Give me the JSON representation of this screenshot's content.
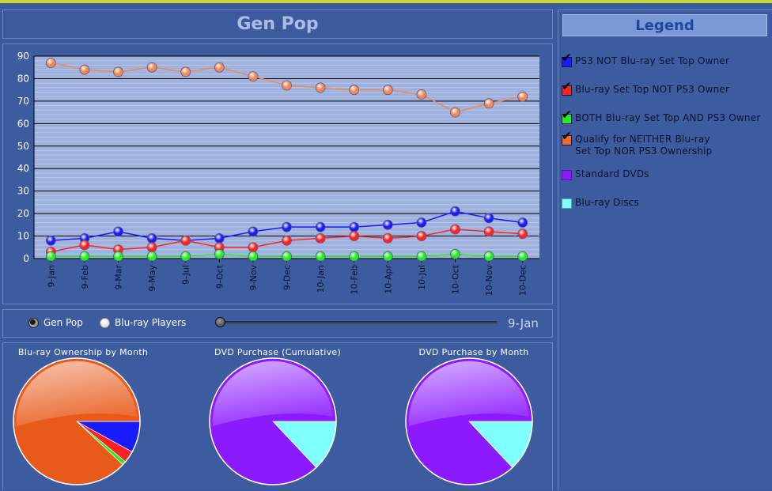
{
  "title": "Gen Pop",
  "legend": {
    "heading": "Legend",
    "items": [
      {
        "label": "PS3 NOT Blu-ray Set Top Owner",
        "color": "#1a1aff",
        "checked": true
      },
      {
        "label": "Blu-ray Set Top NOT PS3 Owner",
        "color": "#ff2222",
        "checked": true
      },
      {
        "label": "BOTH Blu-ray Set Top AND PS3 Owner",
        "color": "#22ee22",
        "checked": true
      },
      {
        "label": "Qualify for NEITHER Blu-ray\nSet Top NOR PS3 Ownership",
        "color": "#f06a2a",
        "checked": true
      },
      {
        "label": "Standard DVDs",
        "color": "#8c1aff",
        "checked": false
      },
      {
        "label": "Blu-ray Discs",
        "color": "#80ffff",
        "checked": false
      }
    ]
  },
  "controls": {
    "radio_gen_pop": "Gen Pop",
    "radio_blu_ray": "Blu-ray Players",
    "selected": "Gen Pop",
    "slider_value": "9-Jan",
    "slider_position": 0
  },
  "chart_data": [
    {
      "type": "line",
      "x": [
        "9-Jan",
        "9-Feb",
        "9-Mar",
        "9-May",
        "9-Jul",
        "9-Oct",
        "9-Nov",
        "9-Dec",
        "10-Jan",
        "10-Feb",
        "10-Apr",
        "10-Jul",
        "10-Oct",
        "10-Nov",
        "10-Dec"
      ],
      "ylim": [
        0,
        90
      ],
      "yticks": [
        0,
        10,
        20,
        30,
        40,
        50,
        60,
        70,
        80,
        90
      ],
      "grid": true,
      "series": [
        {
          "name": "Qualify for NEITHER Blu-ray Set Top NOR PS3 Ownership",
          "color": "#f08858",
          "values": [
            87,
            84,
            83,
            85,
            83,
            85,
            81,
            77,
            76,
            75,
            75,
            73,
            65,
            69,
            72
          ]
        },
        {
          "name": "PS3 NOT Blu-ray Set Top Owner",
          "color": "#1a1aff",
          "values": [
            8,
            9,
            12,
            9,
            8,
            9,
            12,
            14,
            14,
            14,
            15,
            16,
            21,
            18,
            16
          ]
        },
        {
          "name": "Blu-ray Set Top NOT PS3 Owner",
          "color": "#ff2222",
          "values": [
            3,
            6,
            4,
            5,
            8,
            5,
            5,
            8,
            9,
            10,
            9,
            10,
            13,
            12,
            11
          ]
        },
        {
          "name": "BOTH Blu-ray Set Top AND PS3 Owner",
          "color": "#22ee22",
          "values": [
            1,
            1,
            1,
            1,
            1,
            2,
            1,
            1,
            1,
            1,
            1,
            1,
            2,
            1,
            1
          ]
        }
      ]
    },
    {
      "type": "pie",
      "title": "Blu-ray Ownership by Month",
      "slices": [
        {
          "name": "PS3 NOT Blu-ray Set Top Owner",
          "value": 8,
          "color": "#1a1aff"
        },
        {
          "name": "Blu-ray Set Top NOT PS3 Owner",
          "value": 3,
          "color": "#ff2222"
        },
        {
          "name": "BOTH Blu-ray Set Top AND PS3 Owner",
          "value": 1,
          "color": "#22ee22"
        },
        {
          "name": "Qualify for NEITHER Blu-ray Set Top NOR PS3 Ownership",
          "value": 88,
          "color": "#e85a1a"
        }
      ]
    },
    {
      "type": "pie",
      "title": "DVD Purchase (Cumulative)",
      "slices": [
        {
          "name": "Blu-ray Discs",
          "value": 13,
          "color": "#80ffff"
        },
        {
          "name": "Standard DVDs",
          "value": 87,
          "color": "#8c1aff"
        }
      ]
    },
    {
      "type": "pie",
      "title": "DVD Purchase by Month",
      "slices": [
        {
          "name": "Blu-ray Discs",
          "value": 13,
          "color": "#80ffff"
        },
        {
          "name": "Standard DVDs",
          "value": 87,
          "color": "#8c1aff"
        }
      ]
    }
  ]
}
